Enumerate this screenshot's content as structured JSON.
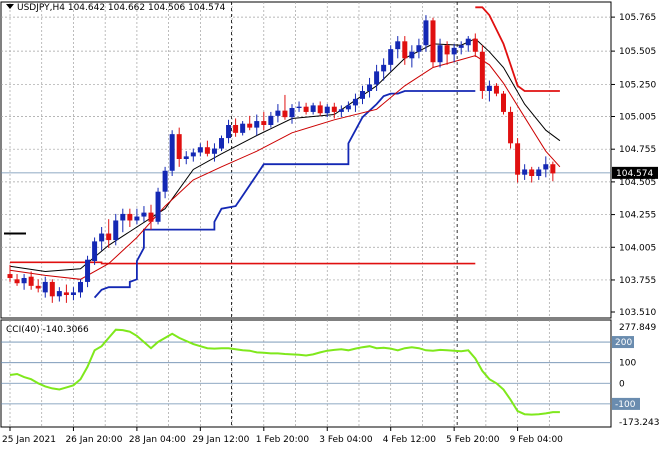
{
  "header": {
    "symbol": "USDJPY,H4",
    "ohlc": "104.642 104.662 104.506 104.574"
  },
  "indicator": {
    "label": "CCI(40) -140.3066",
    "levels": [
      "200",
      "100",
      "0",
      "-100"
    ],
    "max_label": "277.849",
    "min_label": "-173.2439",
    "range": [
      -173.2439,
      277.849
    ]
  },
  "colors": {
    "bull": "#1428b4",
    "bear": "#e01010",
    "grid": "#a0a0a0",
    "cci": "#7fe81c",
    "stop_blue": "#1428b4",
    "stop_red": "#e01010",
    "ma_black": "#000000",
    "ma_red": "#cc0000",
    "price_line": "#6a8caf",
    "level_line": "#6a8caf"
  },
  "current_price": "104.574",
  "chart_data": {
    "type": "candlestick",
    "ylim": [
      103.51,
      105.85
    ],
    "y_ticks": [
      "105.765",
      "105.505",
      "105.250",
      "105.005",
      "104.755",
      "104.505",
      "104.255",
      "104.005",
      "103.755",
      "103.510"
    ],
    "x_ticks": [
      "25 Jan 2021",
      "26 Jan 20:00",
      "28 Jan 04:00",
      "29 Jan 12:00",
      "1 Feb 20:00",
      "3 Feb 04:00",
      "4 Feb 12:00",
      "5 Feb 20:00",
      "9 Feb 04:00"
    ],
    "candles": [
      [
        103.8,
        103.87,
        103.74,
        103.77
      ],
      [
        103.76,
        103.8,
        103.71,
        103.73
      ],
      [
        103.73,
        103.8,
        103.68,
        103.77
      ],
      [
        103.78,
        103.82,
        103.68,
        103.71
      ],
      [
        103.71,
        103.76,
        103.66,
        103.69
      ],
      [
        103.66,
        103.78,
        103.62,
        103.74
      ],
      [
        103.74,
        103.76,
        103.58,
        103.63
      ],
      [
        103.63,
        103.7,
        103.59,
        103.67
      ],
      [
        103.66,
        103.72,
        103.58,
        103.64
      ],
      [
        103.64,
        103.7,
        103.6,
        103.66
      ],
      [
        103.66,
        103.76,
        103.62,
        103.74
      ],
      [
        103.74,
        103.94,
        103.7,
        103.91
      ],
      [
        103.9,
        104.08,
        103.87,
        104.05
      ],
      [
        104.05,
        104.16,
        103.98,
        104.11
      ],
      [
        104.11,
        104.22,
        104.0,
        104.06
      ],
      [
        104.06,
        104.26,
        104.02,
        104.21
      ],
      [
        104.21,
        104.3,
        104.12,
        104.26
      ],
      [
        104.26,
        104.3,
        104.16,
        104.21
      ],
      [
        104.21,
        104.3,
        104.18,
        104.24
      ],
      [
        104.24,
        104.32,
        104.2,
        104.27
      ],
      [
        104.27,
        104.33,
        104.14,
        104.2
      ],
      [
        104.2,
        104.46,
        104.18,
        104.43
      ],
      [
        104.43,
        104.62,
        104.38,
        104.59
      ],
      [
        104.59,
        104.9,
        104.55,
        104.87
      ],
      [
        104.87,
        104.92,
        104.62,
        104.68
      ],
      [
        104.68,
        104.74,
        104.64,
        104.7
      ],
      [
        104.7,
        104.76,
        104.66,
        104.73
      ],
      [
        104.73,
        104.8,
        104.7,
        104.77
      ],
      [
        104.77,
        104.82,
        104.7,
        104.72
      ],
      [
        104.72,
        104.8,
        104.66,
        104.76
      ],
      [
        104.76,
        104.86,
        104.74,
        104.84
      ],
      [
        104.84,
        104.98,
        104.8,
        104.94
      ],
      [
        104.94,
        104.99,
        104.85,
        104.88
      ],
      [
        104.88,
        104.97,
        104.86,
        104.95
      ],
      [
        104.95,
        105.01,
        104.9,
        104.92
      ],
      [
        104.92,
        105.02,
        104.86,
        104.97
      ],
      [
        104.97,
        105.04,
        104.9,
        104.94
      ],
      [
        104.94,
        105.04,
        104.92,
        105.01
      ],
      [
        105.01,
        105.1,
        104.96,
        105.05
      ],
      [
        105.05,
        105.17,
        104.98,
        105.0
      ],
      [
        105.0,
        105.1,
        104.95,
        105.07
      ],
      [
        105.07,
        105.12,
        105.04,
        105.08
      ],
      [
        105.08,
        105.11,
        105.02,
        105.04
      ],
      [
        105.04,
        105.11,
        105.02,
        105.09
      ],
      [
        105.09,
        105.12,
        105.01,
        105.03
      ],
      [
        105.03,
        105.1,
        105.0,
        105.08
      ],
      [
        105.08,
        105.11,
        104.99,
        105.04
      ],
      [
        105.04,
        105.09,
        105.0,
        105.06
      ],
      [
        105.06,
        105.12,
        105.04,
        105.09
      ],
      [
        105.09,
        105.18,
        105.04,
        105.14
      ],
      [
        105.14,
        105.24,
        105.1,
        105.2
      ],
      [
        105.2,
        105.3,
        105.15,
        105.25
      ],
      [
        105.25,
        105.4,
        105.2,
        105.35
      ],
      [
        105.35,
        105.45,
        105.28,
        105.4
      ],
      [
        105.4,
        105.55,
        105.35,
        105.52
      ],
      [
        105.52,
        105.62,
        105.45,
        105.58
      ],
      [
        105.58,
        105.62,
        105.4,
        105.45
      ],
      [
        105.45,
        105.55,
        105.38,
        105.5
      ],
      [
        105.5,
        105.6,
        105.45,
        105.55
      ],
      [
        105.55,
        105.78,
        105.5,
        105.74
      ],
      [
        105.74,
        105.76,
        105.38,
        105.42
      ],
      [
        105.42,
        105.6,
        105.38,
        105.55
      ],
      [
        105.55,
        105.58,
        105.4,
        105.48
      ],
      [
        105.48,
        105.56,
        105.42,
        105.53
      ],
      [
        105.53,
        105.58,
        105.48,
        105.55
      ],
      [
        105.55,
        105.62,
        105.5,
        105.6
      ],
      [
        105.6,
        105.64,
        105.46,
        105.5
      ],
      [
        105.5,
        105.55,
        105.14,
        105.2
      ],
      [
        105.2,
        105.28,
        105.12,
        105.24
      ],
      [
        105.24,
        105.26,
        105.16,
        105.18
      ],
      [
        105.18,
        105.2,
        105.02,
        105.04
      ],
      [
        105.04,
        105.08,
        104.76,
        104.8
      ],
      [
        104.8,
        104.84,
        104.5,
        104.56
      ],
      [
        104.56,
        104.64,
        104.52,
        104.6
      ],
      [
        104.6,
        104.62,
        104.5,
        104.55
      ],
      [
        104.55,
        104.62,
        104.52,
        104.6
      ],
      [
        104.6,
        104.7,
        104.54,
        104.64
      ],
      [
        104.64,
        104.66,
        104.51,
        104.57
      ]
    ],
    "ma_black": [
      [
        0,
        103.86
      ],
      [
        5,
        103.82
      ],
      [
        10,
        103.84
      ],
      [
        14,
        104.02
      ],
      [
        18,
        104.16
      ],
      [
        22,
        104.3
      ],
      [
        26,
        104.6
      ],
      [
        30,
        104.72
      ],
      [
        35,
        104.86
      ],
      [
        40,
        104.99
      ],
      [
        46,
        105.02
      ],
      [
        52,
        105.24
      ],
      [
        56,
        105.45
      ],
      [
        60,
        105.56
      ],
      [
        64,
        105.55
      ],
      [
        66,
        105.6
      ],
      [
        68,
        105.5
      ],
      [
        70,
        105.38
      ],
      [
        73,
        105.1
      ],
      [
        76,
        104.9
      ],
      [
        78,
        104.82
      ]
    ],
    "ma_red": [
      [
        0,
        103.83
      ],
      [
        5,
        103.79
      ],
      [
        10,
        103.76
      ],
      [
        14,
        103.88
      ],
      [
        18,
        104.08
      ],
      [
        22,
        104.32
      ],
      [
        26,
        104.52
      ],
      [
        30,
        104.62
      ],
      [
        35,
        104.74
      ],
      [
        40,
        104.88
      ],
      [
        46,
        104.98
      ],
      [
        52,
        105.06
      ],
      [
        56,
        105.24
      ],
      [
        60,
        105.38
      ],
      [
        64,
        105.44
      ],
      [
        66,
        105.47
      ],
      [
        68,
        105.4
      ],
      [
        70,
        105.26
      ],
      [
        73,
        105.0
      ],
      [
        76,
        104.74
      ],
      [
        78,
        104.62
      ]
    ],
    "stop_red": [
      [
        0,
        103.89
      ],
      [
        13,
        103.89
      ],
      [
        13,
        103.88
      ],
      [
        66,
        103.88
      ]
    ],
    "stop_red_high": [
      [
        66,
        105.84
      ],
      [
        67,
        105.84
      ],
      [
        68,
        105.78
      ],
      [
        70,
        105.56
      ],
      [
        71,
        105.4
      ],
      [
        72,
        105.24
      ],
      [
        73,
        105.2
      ],
      [
        78,
        105.2
      ]
    ],
    "stop_blue": [
      [
        12,
        103.62
      ],
      [
        13,
        103.68
      ],
      [
        14,
        103.7
      ],
      [
        17,
        103.7
      ],
      [
        17,
        103.74
      ],
      [
        18,
        103.76
      ],
      [
        18,
        103.9
      ],
      [
        19,
        104.0
      ],
      [
        19,
        104.14
      ],
      [
        23,
        104.14
      ],
      [
        23,
        104.14
      ],
      [
        29,
        104.14
      ],
      [
        29,
        104.2
      ],
      [
        30,
        104.3
      ],
      [
        32,
        104.32
      ],
      [
        33,
        104.4
      ],
      [
        35,
        104.56
      ],
      [
        36,
        104.64
      ],
      [
        44,
        104.64
      ],
      [
        44,
        104.64
      ],
      [
        48,
        104.64
      ],
      [
        48,
        104.8
      ],
      [
        50,
        105.0
      ],
      [
        52,
        105.1
      ],
      [
        53,
        105.16
      ],
      [
        54,
        105.18
      ],
      [
        55,
        105.18
      ],
      [
        56,
        105.2
      ],
      [
        66,
        105.2
      ]
    ],
    "cci": [
      [
        0,
        40
      ],
      [
        1,
        45
      ],
      [
        2,
        30
      ],
      [
        3,
        20
      ],
      [
        4,
        0
      ],
      [
        5,
        -15
      ],
      [
        6,
        -25
      ],
      [
        7,
        -30
      ],
      [
        8,
        -20
      ],
      [
        9,
        -10
      ],
      [
        10,
        20
      ],
      [
        11,
        80
      ],
      [
        12,
        160
      ],
      [
        13,
        180
      ],
      [
        14,
        220
      ],
      [
        15,
        260
      ],
      [
        16,
        258
      ],
      [
        17,
        250
      ],
      [
        18,
        230
      ],
      [
        19,
        200
      ],
      [
        20,
        170
      ],
      [
        21,
        200
      ],
      [
        22,
        220
      ],
      [
        23,
        240
      ],
      [
        24,
        220
      ],
      [
        25,
        205
      ],
      [
        26,
        190
      ],
      [
        27,
        180
      ],
      [
        28,
        170
      ],
      [
        29,
        168
      ],
      [
        30,
        170
      ],
      [
        31,
        170
      ],
      [
        32,
        165
      ],
      [
        33,
        160
      ],
      [
        34,
        158
      ],
      [
        35,
        150
      ],
      [
        36,
        148
      ],
      [
        37,
        145
      ],
      [
        38,
        145
      ],
      [
        39,
        142
      ],
      [
        40,
        140
      ],
      [
        41,
        138
      ],
      [
        42,
        135
      ],
      [
        43,
        140
      ],
      [
        44,
        150
      ],
      [
        45,
        158
      ],
      [
        46,
        162
      ],
      [
        47,
        165
      ],
      [
        48,
        160
      ],
      [
        49,
        168
      ],
      [
        50,
        175
      ],
      [
        51,
        180
      ],
      [
        52,
        170
      ],
      [
        53,
        172
      ],
      [
        54,
        168
      ],
      [
        55,
        160
      ],
      [
        56,
        170
      ],
      [
        57,
        175
      ],
      [
        58,
        170
      ],
      [
        59,
        160
      ],
      [
        60,
        158
      ],
      [
        61,
        162
      ],
      [
        62,
        160
      ],
      [
        63,
        158
      ],
      [
        64,
        155
      ],
      [
        65,
        160
      ],
      [
        66,
        120
      ],
      [
        67,
        60
      ],
      [
        68,
        20
      ],
      [
        69,
        0
      ],
      [
        70,
        -30
      ],
      [
        71,
        -80
      ],
      [
        72,
        -135
      ],
      [
        73,
        -150
      ],
      [
        74,
        -152
      ],
      [
        75,
        -150
      ],
      [
        76,
        -146
      ],
      [
        77,
        -140
      ],
      [
        78,
        -140
      ]
    ]
  }
}
